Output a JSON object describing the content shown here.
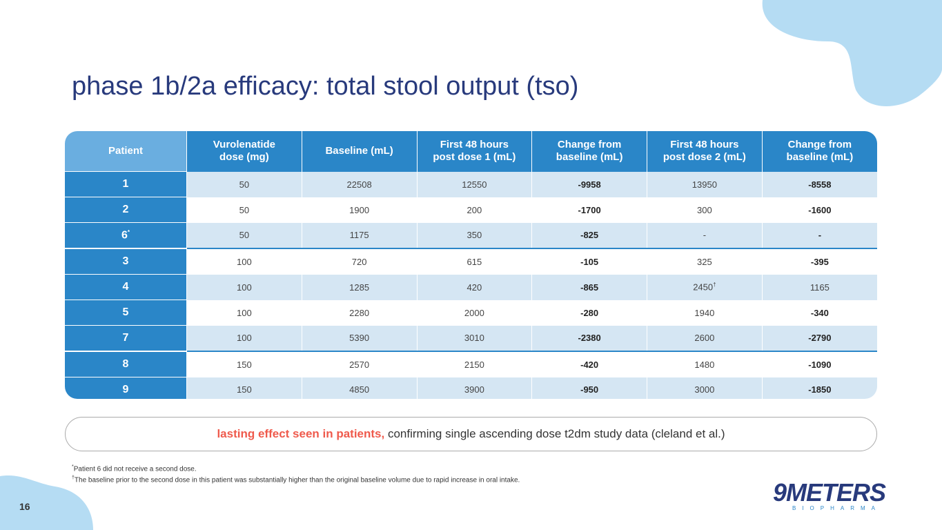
{
  "title": "phase 1b/2a efficacy: total stool output (tso)",
  "table": {
    "headers": [
      "Patient",
      "Vurolenatide dose (mg)",
      "Baseline (mL)",
      "First 48 hours post dose 1 (mL)",
      "Change from baseline (mL)",
      "First 48 hours post dose 2 (mL)",
      "Change from baseline (mL)"
    ],
    "rows": [
      [
        "1",
        "50",
        "22508",
        "12550",
        "-9958",
        "13950",
        "-8558"
      ],
      [
        "2",
        "50",
        "1900",
        "200",
        "-1700",
        "300",
        "-1600"
      ],
      [
        {
          "text": "6",
          "sup": "*"
        },
        "50",
        "1175",
        "350",
        "-825",
        "-",
        "-"
      ],
      [
        "3",
        "100",
        "720",
        "615",
        "-105",
        "325",
        "-395"
      ],
      [
        "4",
        "100",
        "1285",
        "420",
        "-865",
        {
          "text": "2450",
          "sup": "†"
        },
        {
          "text": "1165",
          "bold": false
        }
      ],
      [
        "5",
        "100",
        "2280",
        "2000",
        "-280",
        "1940",
        "-340"
      ],
      [
        "7",
        "100",
        "5390",
        "3010",
        "-2380",
        "2600",
        "-2790"
      ],
      [
        "8",
        "150",
        "2570",
        "2150",
        "-420",
        "1480",
        "-1090"
      ],
      [
        "9",
        "150",
        "4850",
        "3900",
        "-950",
        "3000",
        "-1850"
      ]
    ]
  },
  "callout": {
    "highlight": "lasting effect seen in patients,",
    "text": "confirming single ascending dose t2dm study data (cleland et al.)"
  },
  "footnotes": [
    {
      "mark": "*",
      "text": "Patient 6 did not receive a second dose."
    },
    {
      "mark": "†",
      "text": "The baseline prior to the second dose in this patient was substantially higher than the original baseline volume due to rapid increase in oral intake."
    }
  ],
  "page_number": "16",
  "logo": {
    "name": "9METERS",
    "tagline": "BIOPHARMA"
  }
}
